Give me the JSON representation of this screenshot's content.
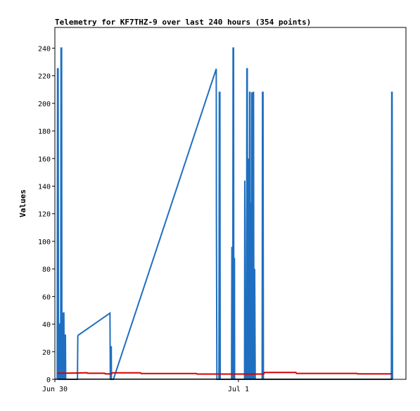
{
  "chart_data": {
    "type": "line",
    "title": "Telemetry for KF7THZ-9 over last 240 hours (354 points)",
    "xlabel": "",
    "ylabel": "Values",
    "ylim": [
      0,
      255
    ],
    "yticks": [
      0,
      20,
      40,
      60,
      80,
      100,
      120,
      140,
      160,
      180,
      200,
      220,
      240
    ],
    "x_unit": "hours from Jun 30 00:00",
    "xlim": [
      0,
      45.9
    ],
    "xticks": [
      {
        "label": "Jun 30",
        "x": 0
      },
      {
        "label": "Jul 1",
        "x": 24
      }
    ],
    "grid": false,
    "legend": "none",
    "series": [
      {
        "color": "#1f6fc0",
        "points": [
          [
            0.3,
            0
          ],
          [
            0.35,
            225
          ],
          [
            0.42,
            225
          ],
          [
            0.48,
            0
          ],
          [
            0.55,
            0
          ],
          [
            0.6,
            40
          ],
          [
            0.65,
            40
          ],
          [
            0.7,
            0
          ],
          [
            0.75,
            0
          ],
          [
            0.8,
            240
          ],
          [
            0.88,
            240
          ],
          [
            0.92,
            0
          ],
          [
            1.05,
            0
          ],
          [
            1.1,
            48
          ],
          [
            1.18,
            48
          ],
          [
            1.22,
            0
          ],
          [
            1.28,
            0
          ],
          [
            1.32,
            32
          ],
          [
            1.38,
            32
          ],
          [
            1.42,
            0
          ],
          [
            2.95,
            0
          ],
          [
            3.0,
            31
          ],
          [
            3.05,
            32
          ],
          [
            7.2,
            48
          ],
          [
            7.25,
            0
          ],
          [
            7.35,
            0
          ],
          [
            7.38,
            24
          ],
          [
            7.4,
            0
          ],
          [
            7.65,
            0
          ],
          [
            21.1,
            225
          ],
          [
            21.12,
            120
          ],
          [
            21.18,
            0
          ],
          [
            21.45,
            0
          ],
          [
            21.5,
            208
          ],
          [
            21.58,
            208
          ],
          [
            21.62,
            0
          ],
          [
            23.1,
            0
          ],
          [
            23.14,
            96
          ],
          [
            23.16,
            0
          ],
          [
            23.25,
            0
          ],
          [
            23.3,
            240
          ],
          [
            23.36,
            240
          ],
          [
            23.4,
            0
          ],
          [
            23.45,
            0
          ],
          [
            23.48,
            88
          ],
          [
            23.5,
            0
          ],
          [
            24.8,
            0
          ],
          [
            24.83,
            144
          ],
          [
            24.86,
            96
          ],
          [
            24.9,
            0
          ],
          [
            25.05,
            0
          ],
          [
            25.1,
            225
          ],
          [
            25.16,
            225
          ],
          [
            25.2,
            0
          ],
          [
            25.28,
            0
          ],
          [
            25.32,
            160
          ],
          [
            25.36,
            0
          ],
          [
            25.42,
            0
          ],
          [
            25.46,
            208
          ],
          [
            25.52,
            208
          ],
          [
            25.56,
            0
          ],
          [
            25.6,
            0
          ],
          [
            25.64,
            128
          ],
          [
            25.68,
            0
          ],
          [
            25.72,
            0
          ],
          [
            25.76,
            208
          ],
          [
            25.8,
            64
          ],
          [
            25.84,
            0
          ],
          [
            25.9,
            0
          ],
          [
            25.94,
            208
          ],
          [
            25.98,
            208
          ],
          [
            26.02,
            0
          ],
          [
            26.08,
            0
          ],
          [
            26.12,
            80
          ],
          [
            26.16,
            40
          ],
          [
            26.2,
            0
          ],
          [
            27.1,
            0
          ],
          [
            27.14,
            208
          ],
          [
            27.22,
            208
          ],
          [
            27.26,
            0
          ],
          [
            44.0,
            0
          ],
          [
            44.04,
            208
          ],
          [
            44.1,
            208
          ],
          [
            44.14,
            0
          ]
        ]
      },
      {
        "color": "#d40000",
        "points": [
          [
            0.3,
            4.5
          ],
          [
            1.5,
            4.5
          ],
          [
            3.0,
            4.6
          ],
          [
            4.2,
            4.8
          ],
          [
            4.3,
            4.4
          ],
          [
            6.5,
            4.4
          ],
          [
            6.6,
            4.0
          ],
          [
            7.4,
            4.0
          ],
          [
            7.5,
            4.7
          ],
          [
            11.2,
            4.7
          ],
          [
            11.3,
            4.2
          ],
          [
            18.5,
            4.2
          ],
          [
            18.6,
            3.8
          ],
          [
            27.3,
            3.8
          ],
          [
            27.4,
            5.0
          ],
          [
            31.5,
            5.0
          ],
          [
            31.6,
            4.3
          ],
          [
            39.5,
            4.3
          ],
          [
            39.6,
            4.0
          ],
          [
            44.1,
            4.0
          ]
        ]
      },
      {
        "color": "#000000",
        "points": [
          [
            0.0,
            0.1
          ],
          [
            44.2,
            0.1
          ]
        ]
      }
    ]
  }
}
